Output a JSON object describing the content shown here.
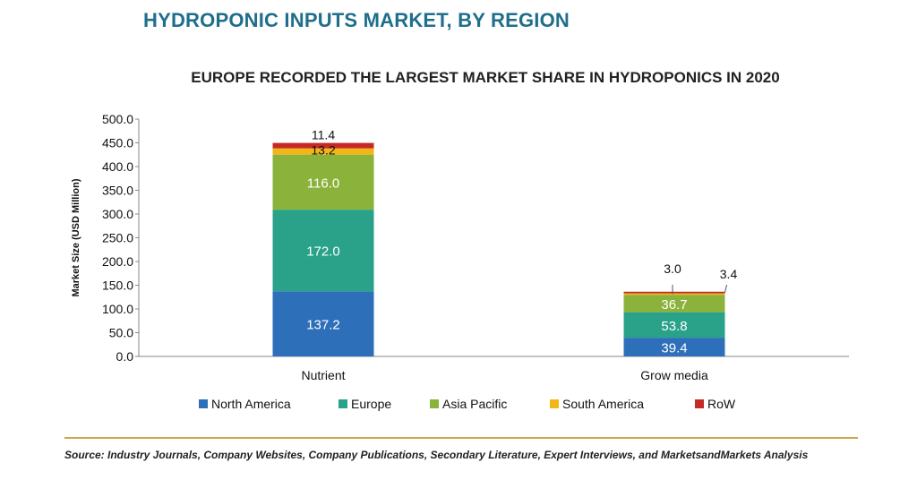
{
  "header": {
    "title": "HYDROPONIC INPUTS MARKET, BY REGION",
    "subtitle": "EUROPE RECORDED THE LARGEST MARKET SHARE IN HYDROPONICS IN 2020"
  },
  "footer": {
    "source": "Source: Industry Journals, Company Websites, Company Publications, Secondary Literature, Expert Interviews, and MarketsandMarkets Analysis"
  },
  "chart_data": {
    "type": "bar",
    "stacked": true,
    "categories": [
      "Nutrient",
      "Grow media"
    ],
    "series": [
      {
        "name": "North America",
        "color": "#2e6fba",
        "values": [
          137.2,
          39.4
        ]
      },
      {
        "name": "Europe",
        "color": "#2aa189",
        "values": [
          172.0,
          53.8
        ]
      },
      {
        "name": "Asia Pacific",
        "color": "#8bb33b",
        "values": [
          116.0,
          36.7
        ]
      },
      {
        "name": "South America",
        "color": "#f2b619",
        "values": [
          13.2,
          3.0
        ]
      },
      {
        "name": "RoW",
        "color": "#c62a24",
        "values": [
          11.4,
          3.4
        ]
      }
    ],
    "ylabel": "Market Size (USD Million)",
    "xlabel": "",
    "ylim": [
      0,
      500
    ],
    "yticks": [
      "0.0",
      "50.0",
      "100.0",
      "150.0",
      "200.0",
      "250.0",
      "300.0",
      "350.0",
      "400.0",
      "450.0",
      "500.0"
    ],
    "data_labels": [
      [
        "137.2",
        "172.0",
        "116.0",
        "13.2",
        "11.4"
      ],
      [
        "39.4",
        "53.8",
        "36.7",
        "3.0",
        "3.4"
      ]
    ],
    "grid": false,
    "legend_position": "bottom"
  }
}
